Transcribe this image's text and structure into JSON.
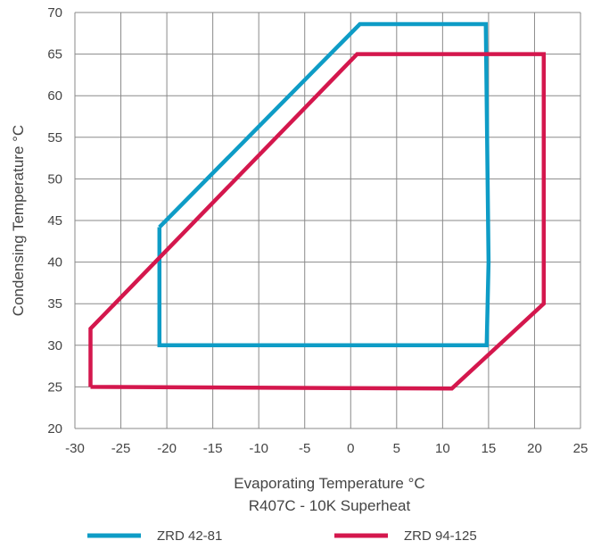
{
  "chart_data": {
    "type": "line",
    "xlabel": "Evaporating Temperature °C",
    "subtitle": "R407C - 10K Superheat",
    "ylabel": "Condensing Temperature °C",
    "xlim": [
      -30,
      25
    ],
    "ylim": [
      20,
      70
    ],
    "x_ticks": [
      -30,
      -25,
      -20,
      -15,
      -10,
      -5,
      0,
      5,
      10,
      15,
      20,
      25
    ],
    "y_ticks": [
      20,
      25,
      30,
      35,
      40,
      45,
      50,
      55,
      60,
      65,
      70
    ],
    "grid": true,
    "legend_position": "bottom",
    "series": [
      {
        "name": "ZRD 42-81",
        "color": "#0e9cc6",
        "points": [
          [
            -20.8,
            44.2
          ],
          [
            1.0,
            68.6
          ],
          [
            14.7,
            68.6
          ],
          [
            15.0,
            40.0
          ],
          [
            14.8,
            30.0
          ],
          [
            -20.8,
            30.0
          ],
          [
            -20.8,
            44.2
          ]
        ]
      },
      {
        "name": "ZRD 94-125",
        "color": "#d4174d",
        "points": [
          [
            -28.3,
            25.0
          ],
          [
            -28.3,
            32.0
          ],
          [
            0.7,
            65.0
          ],
          [
            21.0,
            65.0
          ],
          [
            21.0,
            35.0
          ],
          [
            11.0,
            24.8
          ],
          [
            -28.3,
            25.0
          ]
        ]
      }
    ]
  }
}
